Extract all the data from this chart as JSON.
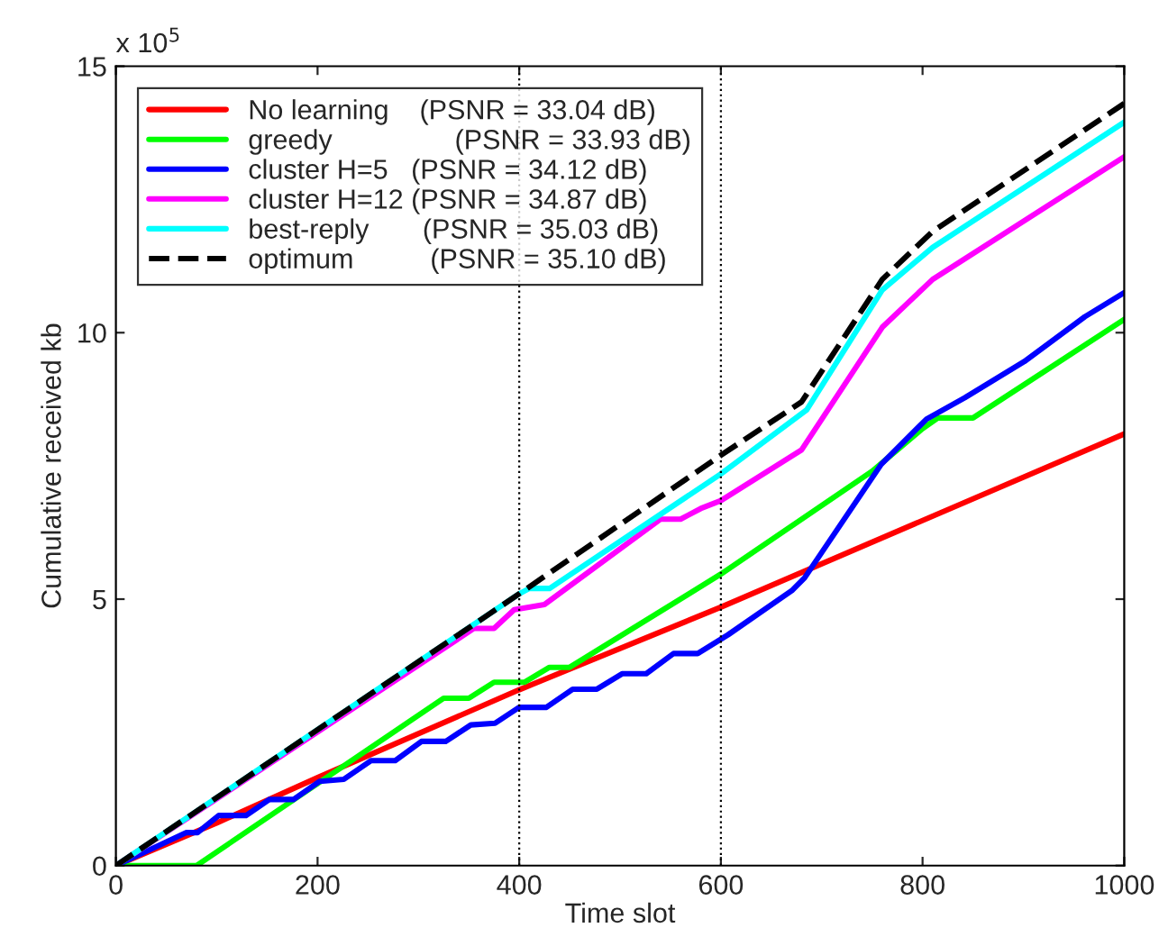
{
  "chart_data": {
    "type": "line",
    "xlabel": "Time slot",
    "ylabel": "Cumulative received kb",
    "annotations": [
      "x 10$^{5}$"
    ],
    "xlim": [
      0,
      1000
    ],
    "xticks": [
      0,
      200,
      400,
      600,
      800,
      1000
    ],
    "ylim": [
      0,
      15
    ],
    "yticks": [
      0,
      5,
      10,
      15
    ],
    "grid": false,
    "legend": "top left",
    "marker": "none",
    "ref_lines": [
      {
        "axis": "x",
        "value": 400,
        "label": null,
        "color": "#000000",
        "line_style": "dotted"
      },
      {
        "axis": "x",
        "value": 600,
        "label": null,
        "color": "#000000",
        "line_style": "dotted"
      }
    ],
    "series": [
      {
        "name": "No learning    (PSNR = 33.04 dB)",
        "color": "#ff0000",
        "line_style": "solid",
        "x": [
          0,
          100,
          200,
          400,
          600,
          1000
        ],
        "values": [
          0,
          0.8,
          1.65,
          3.3,
          4.85,
          8.1
        ]
      },
      {
        "name": "greedy                (PSNR = 33.93 dB)",
        "color": "#00ff00",
        "line_style": "solid",
        "x": [
          0,
          80,
          325,
          350,
          375,
          405,
          430,
          450,
          600,
          750,
          800,
          815,
          850,
          1000
        ],
        "values": [
          0,
          0,
          3.14,
          3.14,
          3.44,
          3.44,
          3.72,
          3.72,
          5.47,
          7.4,
          8.2,
          8.4,
          8.4,
          10.25
        ]
      },
      {
        "name": "cluster H=5   (PSNR = 34.12 dB)",
        "color": "#0000ff",
        "line_style": "solid",
        "x": [
          0,
          70,
          81,
          102,
          129,
          152,
          176,
          202,
          226,
          253,
          277,
          303,
          327,
          352,
          376,
          400,
          427,
          453,
          477,
          502,
          526,
          553,
          577,
          607,
          671,
          683,
          759,
          804,
          842,
          901,
          961,
          1000
        ],
        "values": [
          0,
          0.62,
          0.62,
          0.94,
          0.94,
          1.24,
          1.24,
          1.58,
          1.62,
          1.97,
          1.97,
          2.33,
          2.33,
          2.64,
          2.67,
          2.97,
          2.97,
          3.31,
          3.31,
          3.6,
          3.6,
          3.98,
          3.98,
          4.33,
          5.17,
          5.4,
          7.53,
          8.38,
          8.78,
          9.46,
          10.3,
          10.75
        ]
      },
      {
        "name": "cluster H=12 (PSNR = 34.87 dB)",
        "color": "#ff00ff",
        "line_style": "solid",
        "x": [
          0,
          355,
          375,
          395,
          425,
          540,
          560,
          580,
          600,
          680,
          760,
          810,
          1000
        ],
        "values": [
          0,
          4.45,
          4.45,
          4.8,
          4.9,
          6.5,
          6.5,
          6.7,
          6.85,
          7.8,
          10.1,
          11.0,
          13.3
        ]
      },
      {
        "name": "best-reply       (PSNR = 35.03 dB)",
        "color": "#00ffff",
        "line_style": "solid",
        "x": [
          0,
          400,
          410,
          430,
          600,
          685,
          760,
          810,
          1000
        ],
        "values": [
          0,
          5.1,
          5.2,
          5.2,
          7.35,
          8.55,
          10.8,
          11.6,
          13.95
        ]
      },
      {
        "name": "optimum          (PSNR = 35.10 dB)",
        "color": "#000000",
        "line_style": "dashed",
        "x": [
          0,
          400,
          600,
          680,
          760,
          810,
          1000
        ],
        "values": [
          0,
          5.1,
          7.7,
          8.7,
          11.0,
          11.9,
          14.3
        ]
      }
    ]
  }
}
